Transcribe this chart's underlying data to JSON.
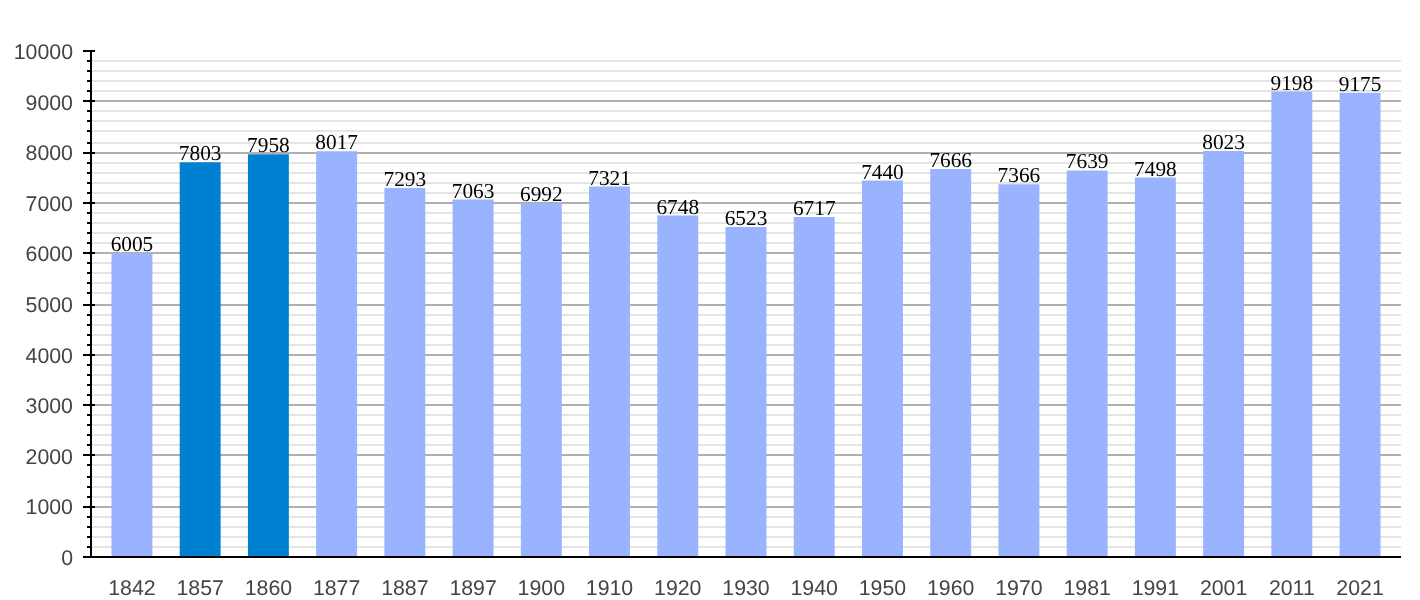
{
  "chart_data": {
    "type": "bar",
    "categories": [
      "1842",
      "1857",
      "1860",
      "1877",
      "1887",
      "1897",
      "1900",
      "1910",
      "1920",
      "1930",
      "1940",
      "1950",
      "1960",
      "1970",
      "1981",
      "1991",
      "2001",
      "2011",
      "2021"
    ],
    "values": [
      6005,
      7803,
      7958,
      8017,
      7293,
      7063,
      6992,
      7321,
      6748,
      6523,
      6717,
      7440,
      7666,
      7366,
      7639,
      7498,
      8023,
      9198,
      9175
    ],
    "colors": [
      "#99b3ff",
      "#0080d0",
      "#0080d0",
      "#99b3ff",
      "#99b3ff",
      "#99b3ff",
      "#99b3ff",
      "#99b3ff",
      "#99b3ff",
      "#99b3ff",
      "#99b3ff",
      "#99b3ff",
      "#99b3ff",
      "#99b3ff",
      "#99b3ff",
      "#99b3ff",
      "#99b3ff",
      "#99b3ff",
      "#99b3ff"
    ],
    "ylim": [
      0,
      10000
    ],
    "yticks": [
      0,
      1000,
      2000,
      3000,
      4000,
      5000,
      6000,
      7000,
      8000,
      9000,
      10000
    ],
    "grid": "y",
    "data_labels": true
  }
}
